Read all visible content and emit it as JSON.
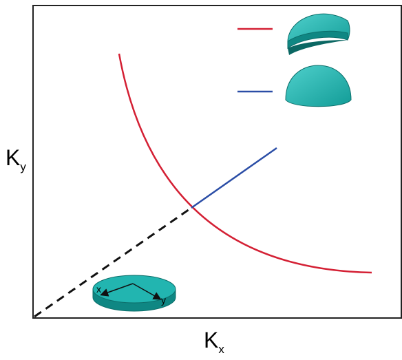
{
  "axes": {
    "y_label": {
      "main": "K",
      "sub": "y"
    },
    "x_label": {
      "main": "K",
      "sub": "x"
    }
  },
  "disk": {
    "x_label": "x",
    "y_label": "y"
  }
}
